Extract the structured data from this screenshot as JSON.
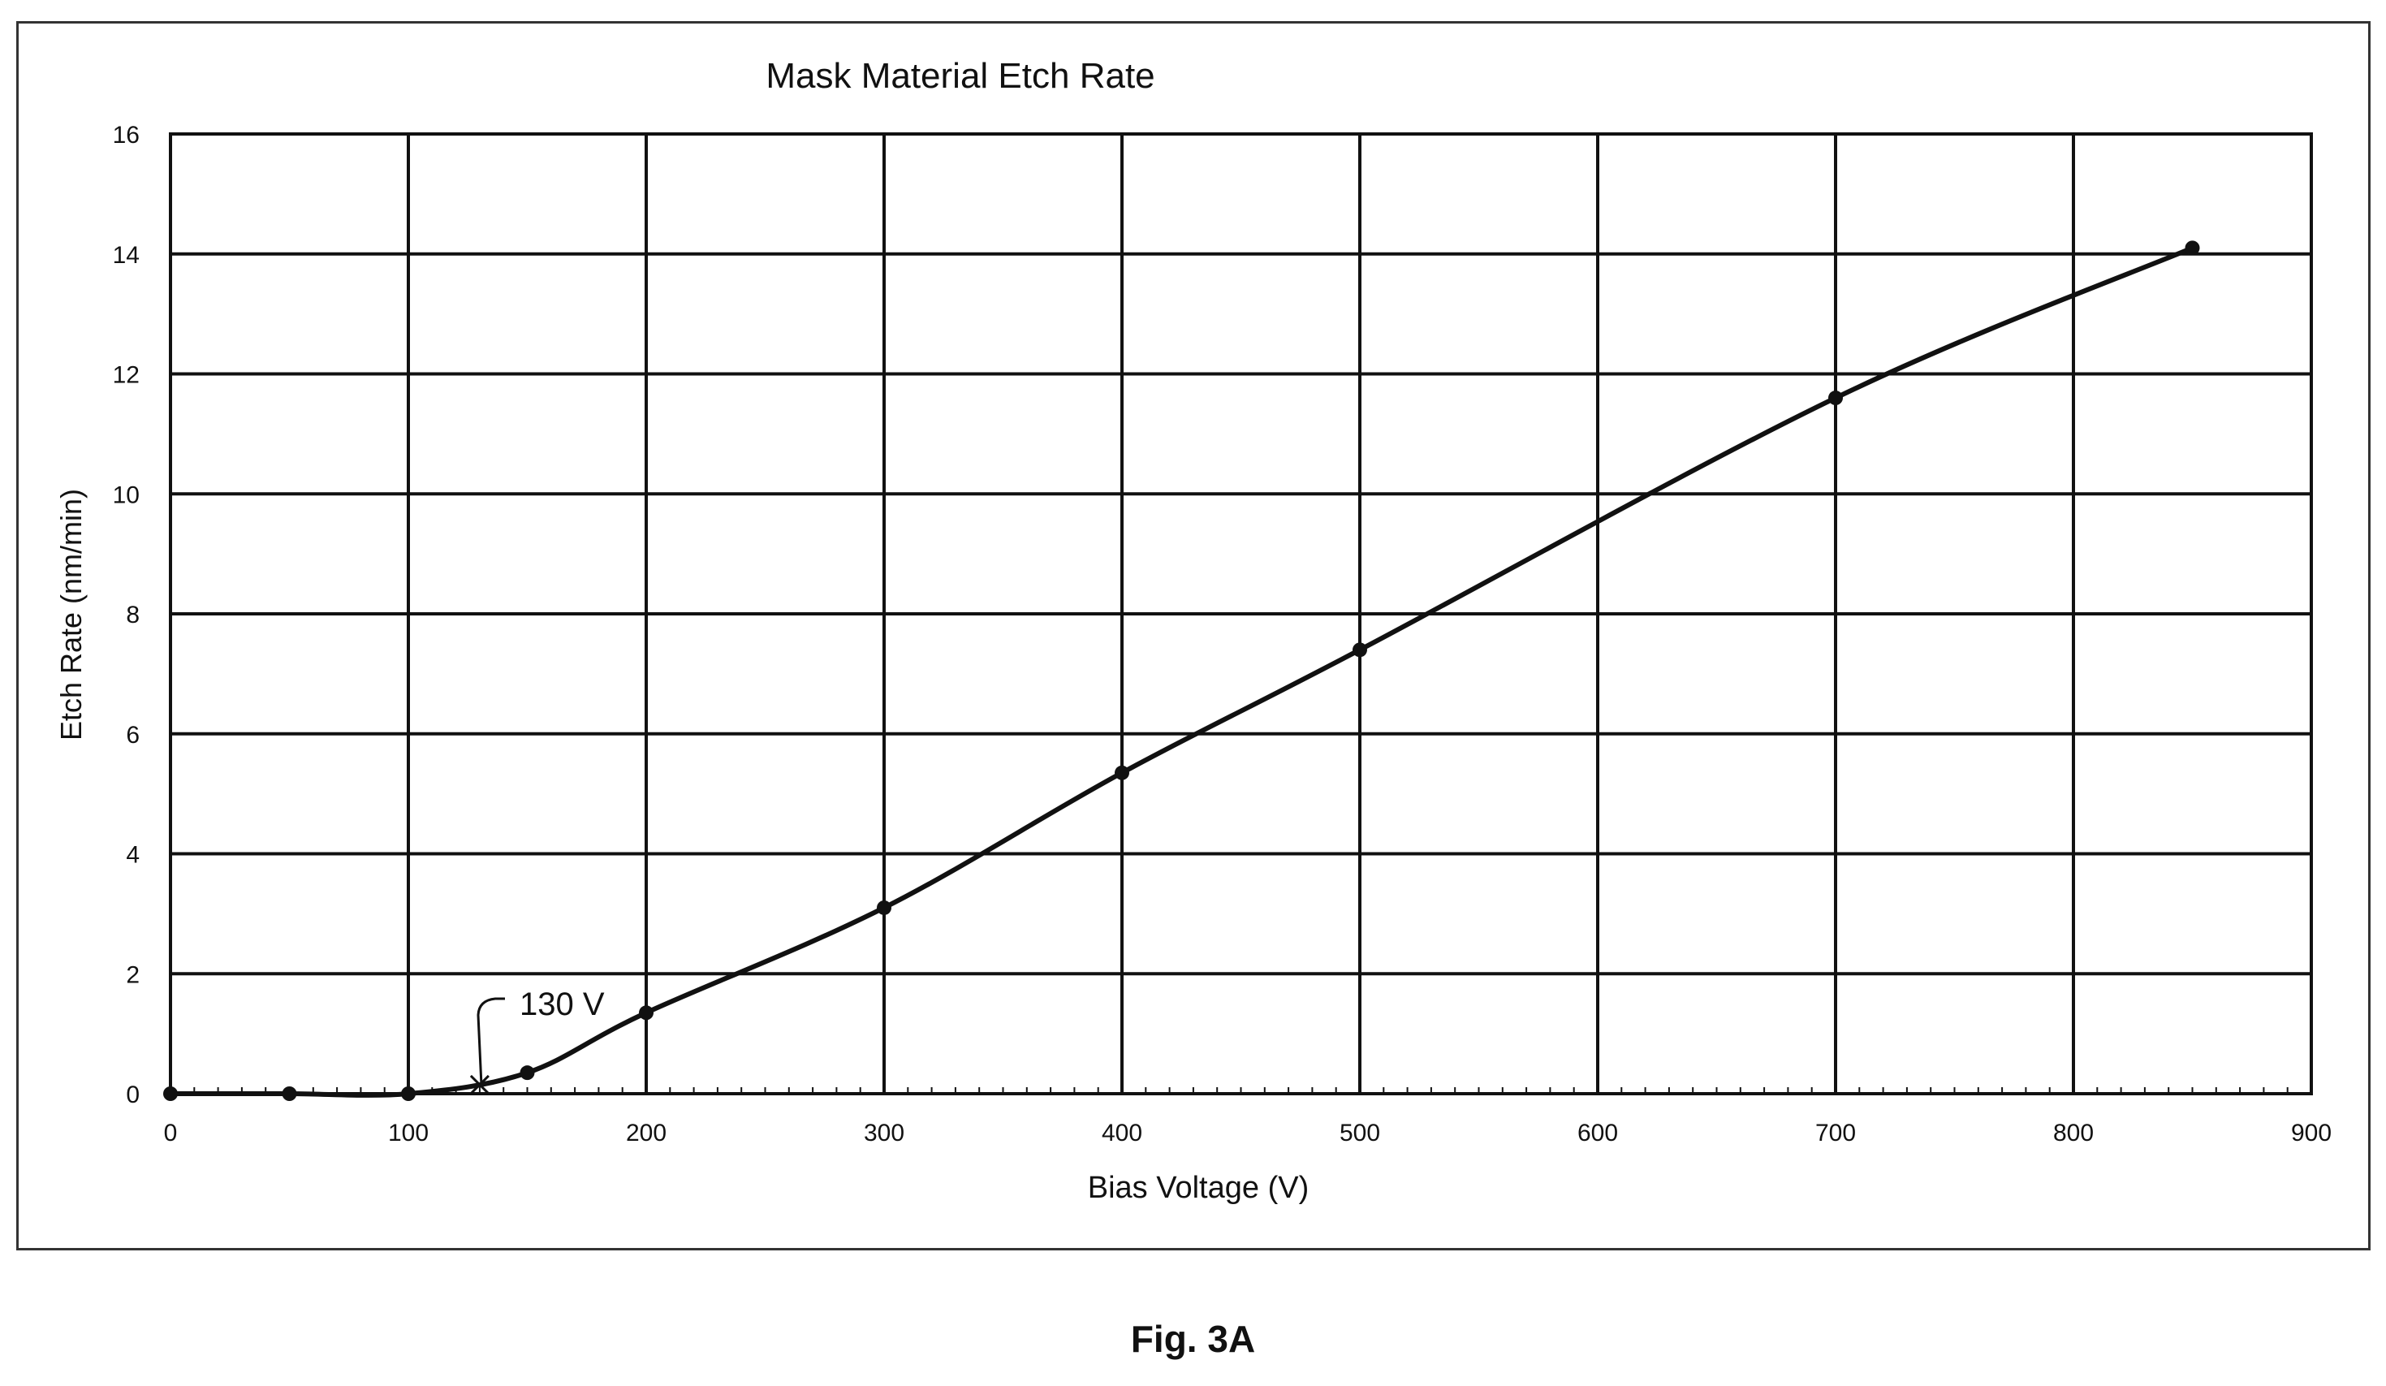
{
  "figure": {
    "caption": "Fig. 3A"
  },
  "chart_data": {
    "type": "line",
    "title": "Mask Material Etch Rate",
    "xlabel": "Bias Voltage (V)",
    "ylabel": "Etch Rate (nm/min)",
    "xlim": [
      0,
      900
    ],
    "ylim": [
      0,
      16
    ],
    "xticks": [
      0,
      100,
      200,
      300,
      400,
      500,
      600,
      700,
      800,
      900
    ],
    "yticks": [
      0,
      2,
      4,
      6,
      8,
      10,
      12,
      14,
      16
    ],
    "grid": true,
    "legend": "none",
    "series": [
      {
        "x": [
          0,
          50,
          100,
          150,
          200,
          300,
          400,
          500,
          700,
          850
        ],
        "y": [
          0.0,
          0.0,
          0.0,
          0.35,
          1.35,
          3.1,
          5.35,
          7.4,
          11.6,
          14.1
        ]
      }
    ],
    "annotations": [
      {
        "text": "130 V",
        "x": 130,
        "y": 0.15,
        "marker": "x"
      }
    ]
  }
}
